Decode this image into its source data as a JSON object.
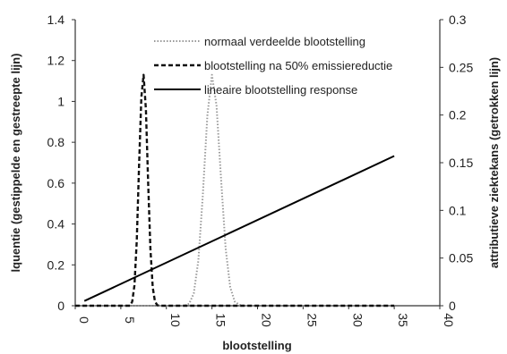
{
  "chart_data": {
    "type": "line",
    "xlabel": "blootstelling",
    "ylabel_left": "lquentie (gestippelde en gestreepte lijn)",
    "ylabel_right": "attributieve ziektekans (getrokken lijn)",
    "xlim": [
      0,
      40
    ],
    "ylim_left": [
      0,
      1.4
    ],
    "ylim_right": [
      0,
      0.3
    ],
    "xticks": [
      "0",
      "5",
      "10",
      "15",
      "20",
      "25",
      "30",
      "35",
      "40"
    ],
    "yticks_left": [
      "0",
      "0.2",
      "0.4",
      "0.6",
      "0.8",
      "1",
      "1.2",
      "1.4"
    ],
    "yticks_right": [
      "0",
      "0.05",
      "0.1",
      "0.15",
      "0.2",
      "0.25",
      "0.3"
    ],
    "grid": false,
    "legend_position": "top-center",
    "series": [
      {
        "name": "normaal verdeelde blootstelling",
        "axis": "left",
        "style": "dotted",
        "color": "#999999",
        "x": [
          0,
          12,
          12.5,
          13,
          13.5,
          14,
          14.5,
          15,
          15.5,
          16,
          16.5,
          17,
          17.5,
          18,
          18.5,
          35
        ],
        "y": [
          0,
          0,
          0.01,
          0.06,
          0.22,
          0.54,
          0.93,
          1.13,
          0.98,
          0.62,
          0.28,
          0.09,
          0.02,
          0.005,
          0,
          0
        ]
      },
      {
        "name": "blootstelling na 50% emissiereductie",
        "axis": "left",
        "style": "dashed",
        "color": "#111111",
        "x": [
          0,
          6,
          6.25,
          6.5,
          6.75,
          7,
          7.25,
          7.5,
          7.75,
          8,
          8.25,
          8.5,
          8.75,
          9,
          9.25,
          35
        ],
        "y": [
          0,
          0,
          0.02,
          0.1,
          0.32,
          0.68,
          1.02,
          1.13,
          0.96,
          0.6,
          0.28,
          0.09,
          0.02,
          0.003,
          0,
          0
        ]
      },
      {
        "name": "lineaire blootstelling response",
        "axis": "right",
        "style": "solid",
        "color": "#000000",
        "x": [
          1,
          35
        ],
        "y": [
          0.005,
          0.157
        ]
      }
    ]
  }
}
